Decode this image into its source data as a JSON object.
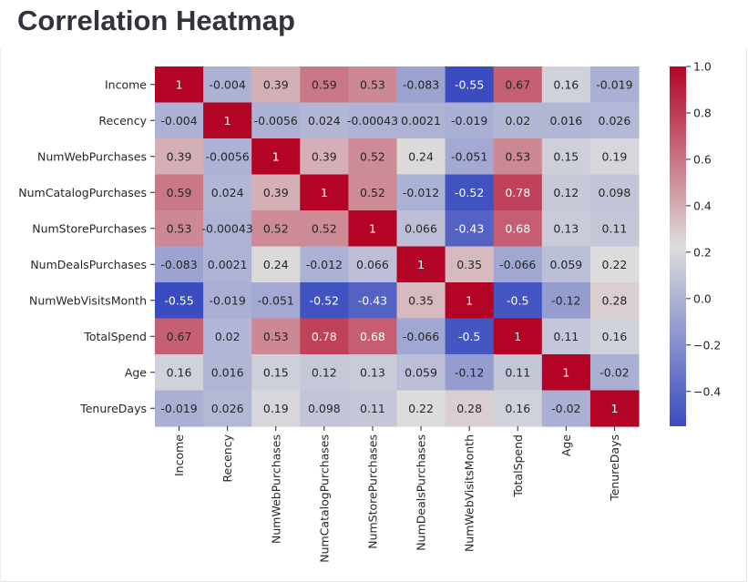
{
  "page": {
    "title": "Correlation Heatmap"
  },
  "chart_data": {
    "type": "heatmap",
    "title": "",
    "colormap": "coolwarm",
    "colors": {
      "low": "#3b4cc0",
      "mid": "#dddddd",
      "high": "#b40426"
    },
    "vmin": -0.55,
    "vmax": 1.0,
    "rows": [
      "Income",
      "Recency",
      "NumWebPurchases",
      "NumCatalogPurchases",
      "NumStorePurchases",
      "NumDealsPurchases",
      "NumWebVisitsMonth",
      "TotalSpend",
      "Age",
      "TenureDays"
    ],
    "cols": [
      "Income",
      "Recency",
      "NumWebPurchases",
      "NumCatalogPurchases",
      "NumStorePurchases",
      "NumDealsPurchases",
      "NumWebVisitsMonth",
      "TotalSpend",
      "Age",
      "TenureDays"
    ],
    "values": [
      [
        1,
        -0.004,
        0.39,
        0.59,
        0.53,
        -0.083,
        -0.55,
        0.67,
        0.16,
        -0.019
      ],
      [
        -0.004,
        1,
        -0.0056,
        0.024,
        -0.00043,
        0.0021,
        -0.019,
        0.02,
        0.016,
        0.026
      ],
      [
        0.39,
        -0.0056,
        1,
        0.39,
        0.52,
        0.24,
        -0.051,
        0.53,
        0.15,
        0.19
      ],
      [
        0.59,
        0.024,
        0.39,
        1,
        0.52,
        -0.012,
        -0.52,
        0.78,
        0.12,
        0.098
      ],
      [
        0.53,
        -0.00043,
        0.52,
        0.52,
        1,
        0.066,
        -0.43,
        0.68,
        0.13,
        0.11
      ],
      [
        -0.083,
        0.0021,
        0.24,
        -0.012,
        0.066,
        1,
        0.35,
        -0.066,
        0.059,
        0.22
      ],
      [
        -0.55,
        -0.019,
        -0.051,
        -0.52,
        -0.43,
        0.35,
        1,
        -0.5,
        -0.12,
        0.28
      ],
      [
        0.67,
        0.02,
        0.53,
        0.78,
        0.68,
        -0.066,
        -0.5,
        1,
        0.11,
        0.16
      ],
      [
        0.16,
        0.016,
        0.15,
        0.12,
        0.13,
        0.059,
        -0.12,
        0.11,
        1,
        -0.02
      ],
      [
        -0.019,
        0.026,
        0.19,
        0.098,
        0.11,
        0.22,
        0.28,
        0.16,
        -0.02,
        1
      ]
    ],
    "cell_labels": [
      [
        "1",
        "-0.004",
        "0.39",
        "0.59",
        "0.53",
        "-0.083",
        "-0.55",
        "0.67",
        "0.16",
        "-0.019"
      ],
      [
        "-0.004",
        "1",
        "-0.0056",
        "0.024",
        "-0.00043",
        "0.0021",
        "-0.019",
        "0.02",
        "0.016",
        "0.026"
      ],
      [
        "0.39",
        "-0.0056",
        "1",
        "0.39",
        "0.52",
        "0.24",
        "-0.051",
        "0.53",
        "0.15",
        "0.19"
      ],
      [
        "0.59",
        "0.024",
        "0.39",
        "1",
        "0.52",
        "-0.012",
        "-0.52",
        "0.78",
        "0.12",
        "0.098"
      ],
      [
        "0.53",
        "-0.00043",
        "0.52",
        "0.52",
        "1",
        "0.066",
        "-0.43",
        "0.68",
        "0.13",
        "0.11"
      ],
      [
        "-0.083",
        "0.0021",
        "0.24",
        "-0.012",
        "0.066",
        "1",
        "0.35",
        "-0.066",
        "0.059",
        "0.22"
      ],
      [
        "-0.55",
        "-0.019",
        "-0.051",
        "-0.52",
        "-0.43",
        "0.35",
        "1",
        "-0.5",
        "-0.12",
        "0.28"
      ],
      [
        "0.67",
        "0.02",
        "0.53",
        "0.78",
        "0.68",
        "-0.066",
        "-0.5",
        "1",
        "0.11",
        "0.16"
      ],
      [
        "0.16",
        "0.016",
        "0.15",
        "0.12",
        "0.13",
        "0.059",
        "-0.12",
        "0.11",
        "1",
        "-0.02"
      ],
      [
        "-0.019",
        "0.026",
        "0.19",
        "0.098",
        "0.11",
        "0.22",
        "0.28",
        "0.16",
        "-0.02",
        "1"
      ]
    ],
    "colorbar": {
      "ticks": [
        1.0,
        0.8,
        0.6,
        0.4,
        0.2,
        0.0,
        -0.2,
        -0.4
      ],
      "tick_labels": [
        "1.0",
        "0.8",
        "0.6",
        "0.4",
        "0.2",
        "0.0",
        "−0.2",
        "−0.4"
      ]
    }
  }
}
